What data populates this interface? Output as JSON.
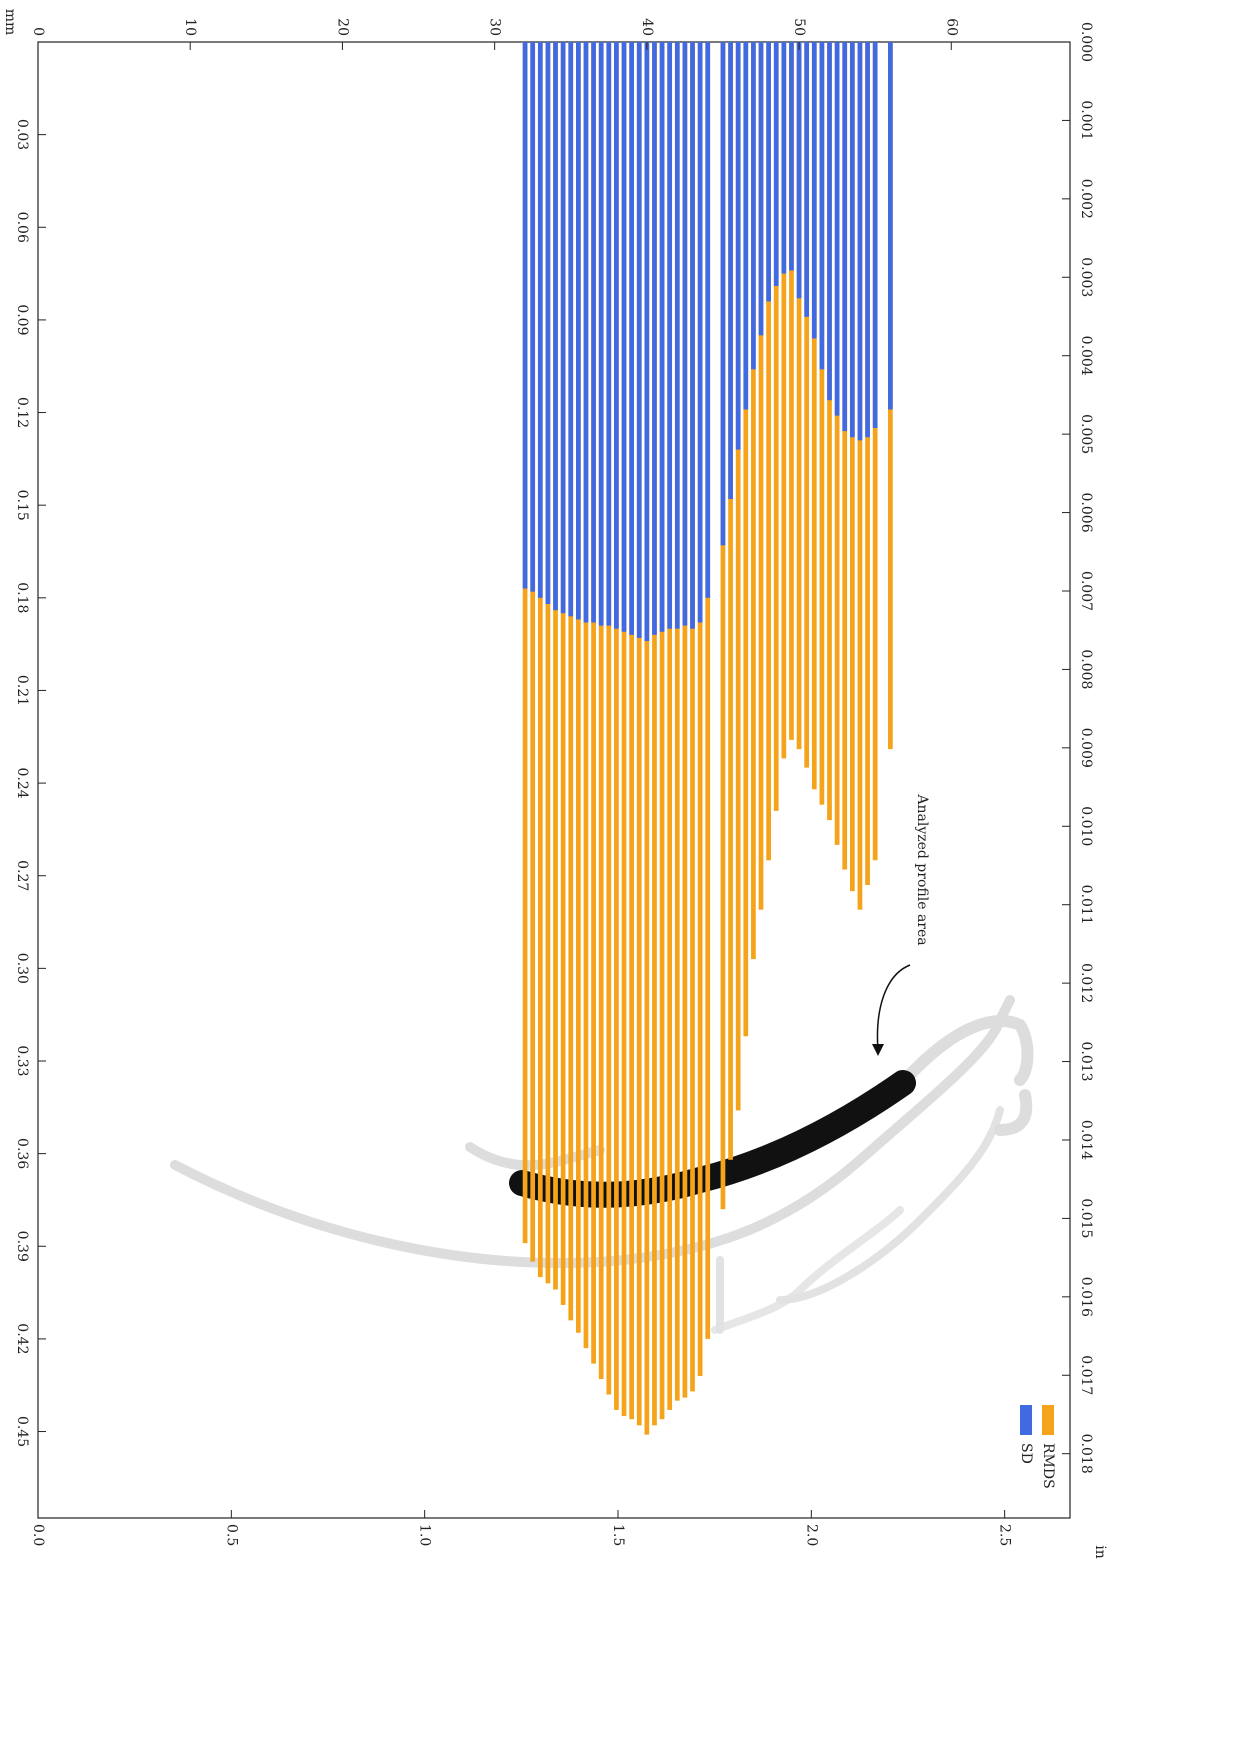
{
  "chart_data": {
    "type": "bar",
    "x_label": "mm",
    "x2_label": "in",
    "annotation": "Analyzed profile area",
    "xlim": [
      0,
      67.8
    ],
    "xticks": [
      0,
      10,
      20,
      30,
      40,
      50,
      60
    ],
    "x2lim": [
      0,
      2.669
    ],
    "x2ticks": [
      {
        "value": 0,
        "label": "0.0"
      },
      0.5,
      {
        "value": 1,
        "label": "1.0"
      },
      1.5,
      {
        "value": 2,
        "label": "2.0"
      },
      2.5
    ],
    "ylim": [
      0,
      0.478
    ],
    "yticks": [
      0.03,
      0.06,
      0.09,
      0.12,
      0.15,
      0.18,
      0.21,
      0.24,
      0.27,
      {
        "value": 0.3,
        "label": "0.30"
      },
      0.33,
      0.36,
      0.39,
      0.42,
      0.45
    ],
    "y2lim": [
      0,
      0.01882
    ],
    "y2ticks": [
      {
        "value": 0,
        "label": "0.000"
      },
      0.001,
      0.002,
      0.003,
      0.004,
      0.005,
      0.006,
      0.007,
      0.008,
      0.009,
      {
        "value": 0.01,
        "label": "0.010"
      },
      0.011,
      0.012,
      0.013,
      0.014,
      0.015,
      0.016,
      0.017,
      0.018
    ],
    "x": [
      32,
      32.5,
      33,
      33.5,
      34,
      34.5,
      35,
      35.5,
      36,
      36.5,
      37,
      37.5,
      38,
      38.5,
      39,
      39.5,
      40,
      40.5,
      41,
      41.5,
      42,
      42.5,
      43,
      43.5,
      44,
      44.5,
      45,
      45.5,
      46,
      46.5,
      47,
      47.5,
      48,
      48.5,
      49,
      49.5,
      50,
      50.5,
      51,
      51.5,
      52,
      52.5,
      53,
      53.5,
      54,
      54.5,
      55,
      55.5,
      56
    ],
    "series": [
      {
        "name": "RMDS",
        "color": "#f5a31a",
        "values": [
          0.389,
          0.395,
          0.4,
          0.402,
          0.404,
          0.409,
          0.414,
          0.418,
          0.423,
          0.428,
          0.433,
          0.438,
          0.443,
          0.445,
          0.446,
          0.448,
          0.451,
          0.448,
          0.446,
          0.443,
          0.44,
          0.439,
          0.437,
          0.432,
          0.42,
          null,
          0.378,
          0.362,
          0.346,
          0.322,
          0.297,
          0.281,
          0.265,
          0.249,
          0.232,
          0.226,
          0.229,
          0.235,
          0.242,
          0.247,
          0.252,
          0.26,
          0.268,
          0.275,
          0.281,
          0.273,
          0.265,
          null,
          0.229
        ]
      },
      {
        "name": "SD",
        "color": "#4169e1",
        "values": [
          0.177,
          0.178,
          0.18,
          0.182,
          0.184,
          0.185,
          0.186,
          0.187,
          0.188,
          0.188,
          0.189,
          0.189,
          0.19,
          0.191,
          0.192,
          0.193,
          0.194,
          0.192,
          0.191,
          0.19,
          0.19,
          0.189,
          0.19,
          0.188,
          0.18,
          null,
          0.163,
          0.148,
          0.132,
          0.119,
          0.106,
          0.095,
          0.084,
          0.079,
          0.075,
          0.074,
          0.083,
          0.089,
          0.096,
          0.106,
          0.116,
          0.121,
          0.126,
          0.128,
          0.129,
          0.128,
          0.125,
          null,
          0.119
        ]
      }
    ]
  }
}
